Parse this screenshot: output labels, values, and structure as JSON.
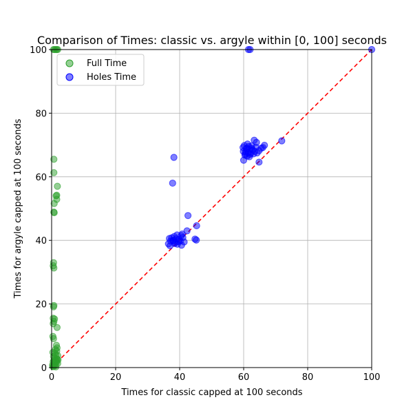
{
  "chart_data": {
    "type": "scatter",
    "title": "Comparison of Times: classic vs. argyle within [0, 100] seconds",
    "xlabel": "Times for classic capped at 100 seconds",
    "ylabel": "Times for argyle capped at 100 seconds",
    "xlim": [
      0,
      100
    ],
    "ylim": [
      0,
      100
    ],
    "xticks": [
      "0",
      "20",
      "40",
      "60",
      "80",
      "100"
    ],
    "yticks": [
      "0",
      "20",
      "40",
      "60",
      "80",
      "100"
    ],
    "grid": true,
    "legend_position": "top-left",
    "reference_line": {
      "style": "dashed",
      "color": "#ff0000",
      "from": [
        0,
        0
      ],
      "to": [
        100,
        100
      ]
    },
    "series": [
      {
        "name": "Full Time",
        "color": "#2ca02c",
        "points": [
          [
            0.6,
            100
          ],
          [
            0.9,
            100
          ],
          [
            1.3,
            100
          ],
          [
            1.6,
            100
          ],
          [
            1.9,
            100
          ],
          [
            0.7,
            65.5
          ],
          [
            0.7,
            61.3
          ],
          [
            1.8,
            57
          ],
          [
            1.6,
            54.2
          ],
          [
            1.4,
            54
          ],
          [
            1.6,
            52.9
          ],
          [
            0.8,
            51.6
          ],
          [
            0.7,
            48.9
          ],
          [
            0.8,
            48.7
          ],
          [
            0.6,
            33
          ],
          [
            0.5,
            32
          ],
          [
            0.7,
            31.3
          ],
          [
            0.7,
            19.5
          ],
          [
            0.6,
            19.1
          ],
          [
            0.5,
            15.5
          ],
          [
            0.9,
            15.3
          ],
          [
            0.7,
            14.5
          ],
          [
            0.5,
            13.8
          ],
          [
            1.7,
            12.6
          ],
          [
            0.4,
            9.8
          ],
          [
            0.6,
            9.1
          ],
          [
            1.5,
            7
          ],
          [
            1.7,
            6.2
          ],
          [
            1.2,
            5.7
          ],
          [
            1.6,
            5.2
          ],
          [
            0.4,
            4.8
          ],
          [
            1.0,
            4.5
          ],
          [
            1.3,
            4.0
          ],
          [
            1.9,
            3.8
          ],
          [
            0.6,
            3.5
          ],
          [
            0.9,
            3.0
          ],
          [
            1.5,
            2.8
          ],
          [
            1.8,
            2.6
          ],
          [
            2.0,
            2.4
          ],
          [
            0.7,
            2.3
          ],
          [
            1.2,
            2.2
          ],
          [
            1.6,
            2.0
          ],
          [
            0.5,
            1.8
          ],
          [
            1.0,
            1.6
          ],
          [
            1.4,
            1.4
          ],
          [
            1.9,
            1.3
          ],
          [
            0.8,
            1.1
          ],
          [
            0.3,
            0.8
          ],
          [
            1.1,
            0.6
          ],
          [
            0.6,
            0.4
          ],
          [
            0.4,
            0.3
          ],
          [
            1.3,
            0.2
          ]
        ]
      },
      {
        "name": "Holes Time",
        "color": "#0000ff",
        "points": [
          [
            61.5,
            100
          ],
          [
            62,
            100
          ],
          [
            100,
            100
          ],
          [
            71.9,
            71.3
          ],
          [
            63.3,
            71.5
          ],
          [
            64,
            70.8
          ],
          [
            61.2,
            70.3
          ],
          [
            66.5,
            69.9
          ],
          [
            60.2,
            69.8
          ],
          [
            59.8,
            69.2
          ],
          [
            61.6,
            69.5
          ],
          [
            62.5,
            69.7
          ],
          [
            63.8,
            69.3
          ],
          [
            65.5,
            69
          ],
          [
            66,
            69.2
          ],
          [
            60.8,
            68.8
          ],
          [
            61.9,
            68.6
          ],
          [
            62.8,
            68.4
          ],
          [
            64.8,
            68.2
          ],
          [
            59.9,
            68
          ],
          [
            60.6,
            67.8
          ],
          [
            61.4,
            67.6
          ],
          [
            62.2,
            67.4
          ],
          [
            63.1,
            67.2
          ],
          [
            64.2,
            67.5
          ],
          [
            60.4,
            66.8
          ],
          [
            61.1,
            66.5
          ],
          [
            61.8,
            66.3
          ],
          [
            60,
            65.2
          ],
          [
            64.8,
            64.6
          ],
          [
            62.5,
            68.9
          ],
          [
            63.5,
            68
          ],
          [
            61,
            69
          ],
          [
            62,
            67
          ],
          [
            60.5,
            67.2
          ],
          [
            38.2,
            66.1
          ],
          [
            37.8,
            58
          ],
          [
            42.6,
            47.8
          ],
          [
            45.3,
            44.6
          ],
          [
            42.3,
            43
          ],
          [
            40.8,
            42
          ],
          [
            40.5,
            41.5
          ],
          [
            39.2,
            41.7
          ],
          [
            38.3,
            41.2
          ],
          [
            37.5,
            40.8
          ],
          [
            36.8,
            40.6
          ],
          [
            38.9,
            40.5
          ],
          [
            39.8,
            40.3
          ],
          [
            40.2,
            39.8
          ],
          [
            41,
            40.9
          ],
          [
            44.8,
            40.4
          ],
          [
            45.2,
            40.1
          ],
          [
            38.1,
            40
          ],
          [
            37.2,
            39.8
          ],
          [
            36.5,
            38.9
          ],
          [
            37,
            38.3
          ],
          [
            38.6,
            39.3
          ],
          [
            39.3,
            38.8
          ],
          [
            40.6,
            38.5
          ],
          [
            41.4,
            39.5
          ],
          [
            39.6,
            39.6
          ],
          [
            38.4,
            39
          ],
          [
            37.9,
            39.9
          ]
        ]
      }
    ]
  }
}
